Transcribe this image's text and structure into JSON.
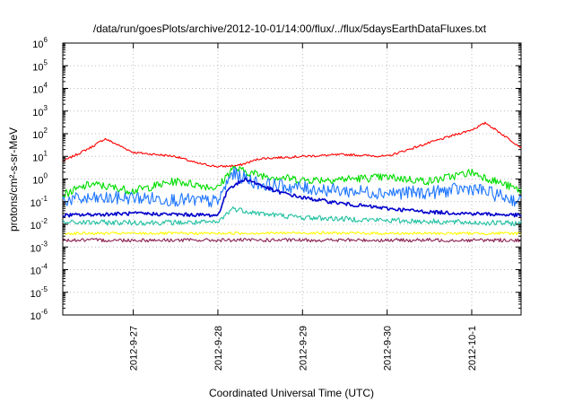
{
  "chart_data": {
    "type": "line",
    "title": "/data/run/goesPlots/archive/2012-10-01/14:00/flux/../flux/5daysEarthDataFluxes.txt",
    "xlabel": "Coordinated Universal Time (UTC)",
    "ylabel": "protons/cm²-s-sr-MeV",
    "y_scale": "log",
    "ylim": [
      1e-06,
      1000000.0
    ],
    "xlim": [
      "2012-09-26 04:00",
      "2012-10-01 14:00"
    ],
    "grid": true,
    "y_ticks": [
      {
        "base": "10",
        "exp": "-6"
      },
      {
        "base": "10",
        "exp": "-5"
      },
      {
        "base": "10",
        "exp": "-4"
      },
      {
        "base": "10",
        "exp": "-3"
      },
      {
        "base": "10",
        "exp": "-2"
      },
      {
        "base": "10",
        "exp": "-1"
      },
      {
        "base": "10",
        "exp": "0"
      },
      {
        "base": "10",
        "exp": "1"
      },
      {
        "base": "10",
        "exp": "2"
      },
      {
        "base": "10",
        "exp": "3"
      },
      {
        "base": "10",
        "exp": "4"
      },
      {
        "base": "10",
        "exp": "5"
      },
      {
        "base": "10",
        "exp": "6"
      }
    ],
    "x_ticks": [
      "2012-9-27",
      "2012-9-28",
      "2012-9-29",
      "2012-9-30",
      "2012-10-1"
    ],
    "series": [
      {
        "color": "#ff0000",
        "x": [
          "2012-09-26 04:00",
          "2012-09-26 12:00",
          "2012-09-26 16:00",
          "2012-09-27 00:00",
          "2012-09-27 12:00",
          "2012-09-27 18:00",
          "2012-09-28 00:00",
          "2012-09-28 06:00",
          "2012-09-28 12:00",
          "2012-09-29 00:00",
          "2012-09-29 12:00",
          "2012-09-30 00:00",
          "2012-09-30 12:00",
          "2012-10-01 00:00",
          "2012-10-01 04:00",
          "2012-10-01 14:00"
        ],
        "y": [
          6,
          25,
          60,
          15,
          10,
          5,
          3.5,
          4,
          8,
          10,
          12,
          10,
          40,
          150,
          300,
          25
        ]
      },
      {
        "color": "#00dd00",
        "x": [
          "2012-09-26 04:00",
          "2012-09-26 12:00",
          "2012-09-27 00:00",
          "2012-09-27 12:00",
          "2012-09-28 00:00",
          "2012-09-28 04:00",
          "2012-09-28 12:00",
          "2012-09-29 00:00",
          "2012-09-29 12:00",
          "2012-09-30 00:00",
          "2012-09-30 12:00",
          "2012-10-01 00:00",
          "2012-10-01 14:00"
        ],
        "y": [
          0.2,
          0.6,
          0.3,
          0.8,
          0.4,
          3,
          1.5,
          0.9,
          1,
          1.2,
          0.8,
          2,
          0.3
        ]
      },
      {
        "color": "#1f77ff",
        "x": [
          "2012-09-26 04:00",
          "2012-09-27 00:00",
          "2012-09-28 00:00",
          "2012-09-28 04:00",
          "2012-09-28 12:00",
          "2012-09-29 00:00",
          "2012-09-29 12:00",
          "2012-09-30 00:00",
          "2012-09-30 12:00",
          "2012-10-01 00:00",
          "2012-10-01 14:00"
        ],
        "y": [
          0.12,
          0.15,
          0.1,
          1.8,
          0.6,
          0.4,
          0.3,
          0.25,
          0.25,
          0.4,
          0.1
        ]
      },
      {
        "color": "#0000cc",
        "x": [
          "2012-09-26 04:00",
          "2012-09-27 00:00",
          "2012-09-28 00:00",
          "2012-09-28 03:00",
          "2012-09-28 08:00",
          "2012-09-28 16:00",
          "2012-09-29 00:00",
          "2012-09-29 12:00",
          "2012-09-30 00:00",
          "2012-09-30 12:00",
          "2012-10-01 00:00",
          "2012-10-01 14:00"
        ],
        "y": [
          0.025,
          0.03,
          0.025,
          0.4,
          1.0,
          0.3,
          0.15,
          0.08,
          0.05,
          0.035,
          0.03,
          0.025
        ]
      },
      {
        "color": "#20c0a0",
        "x": [
          "2012-09-26 04:00",
          "2012-09-27 00:00",
          "2012-09-28 00:00",
          "2012-09-28 04:00",
          "2012-09-28 12:00",
          "2012-09-29 00:00",
          "2012-09-30 00:00",
          "2012-10-01 00:00",
          "2012-10-01 14:00"
        ],
        "y": [
          0.012,
          0.012,
          0.012,
          0.05,
          0.03,
          0.02,
          0.015,
          0.012,
          0.011
        ]
      },
      {
        "color": "#ffff00",
        "x": [
          "2012-09-26 04:00",
          "2012-09-27 00:00",
          "2012-09-28 00:00",
          "2012-09-29 00:00",
          "2012-09-30 00:00",
          "2012-10-01 00:00",
          "2012-10-01 14:00"
        ],
        "y": [
          0.004,
          0.004,
          0.004,
          0.0042,
          0.004,
          0.004,
          0.004
        ]
      },
      {
        "color": "#8b2252",
        "x": [
          "2012-09-26 04:00",
          "2012-09-27 00:00",
          "2012-09-28 00:00",
          "2012-09-29 00:00",
          "2012-09-30 00:00",
          "2012-10-01 00:00",
          "2012-10-01 14:00"
        ],
        "y": [
          0.002,
          0.002,
          0.002,
          0.002,
          0.002,
          0.002,
          0.002
        ]
      }
    ]
  }
}
